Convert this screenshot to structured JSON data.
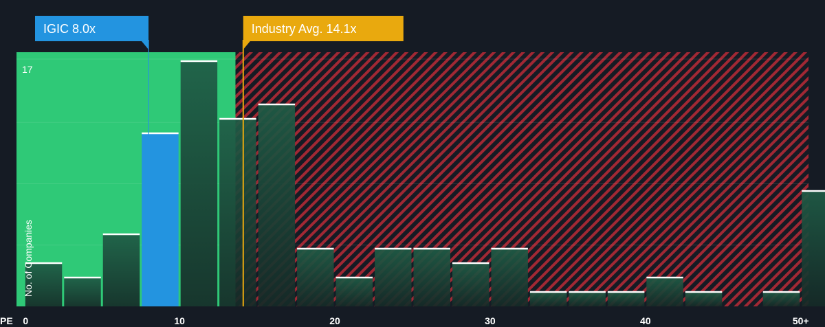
{
  "chart_data": {
    "type": "bar",
    "xlabel": "PE",
    "ylabel": "No. of Companies",
    "y_top_label": "17",
    "ylim": [
      0,
      17
    ],
    "xlim": [
      -0.5,
      50.5
    ],
    "x_ticks": [
      {
        "value": 0,
        "label": "0"
      },
      {
        "value": 10,
        "label": "10"
      },
      {
        "value": 20,
        "label": "20"
      },
      {
        "value": 30,
        "label": "30"
      },
      {
        "value": 40,
        "label": "40"
      },
      {
        "value": 50,
        "label": "50+"
      }
    ],
    "bin_width": 2.5,
    "bins": [
      {
        "start": 0,
        "count": 3
      },
      {
        "start": 2.5,
        "count": 2
      },
      {
        "start": 5,
        "count": 5
      },
      {
        "start": 7.5,
        "count": 12,
        "highlight": true
      },
      {
        "start": 10,
        "count": 17
      },
      {
        "start": 12.5,
        "count": 13
      },
      {
        "start": 15,
        "count": 14
      },
      {
        "start": 17.5,
        "count": 4
      },
      {
        "start": 20,
        "count": 2
      },
      {
        "start": 22.5,
        "count": 4
      },
      {
        "start": 25,
        "count": 4
      },
      {
        "start": 27.5,
        "count": 3
      },
      {
        "start": 30,
        "count": 4
      },
      {
        "start": 32.5,
        "count": 1
      },
      {
        "start": 35,
        "count": 1
      },
      {
        "start": 37.5,
        "count": 1
      },
      {
        "start": 40,
        "count": 2
      },
      {
        "start": 42.5,
        "count": 1
      },
      {
        "start": 45,
        "count": 0
      },
      {
        "start": 47.5,
        "count": 1
      },
      {
        "start": 50,
        "count": 8
      }
    ],
    "fair_zone_end": 13.6,
    "markers": [
      {
        "name": "company",
        "label": "IGIC 8.0x",
        "value": 8.0,
        "color": "#2394e0"
      },
      {
        "name": "industry",
        "label": "Industry Avg. 14.1x",
        "value": 14.1,
        "color": "#e9a90e"
      }
    ],
    "colors": {
      "background": "#151b24",
      "fair_zone": "#2fc977",
      "overvalued_stripe": "#c9303a",
      "bar_fill_top": "#1f5c46",
      "bar_fill_bottom": "#152a27",
      "highlight_bar": "#2394e0",
      "bar_top_line": "#ffffff"
    }
  }
}
